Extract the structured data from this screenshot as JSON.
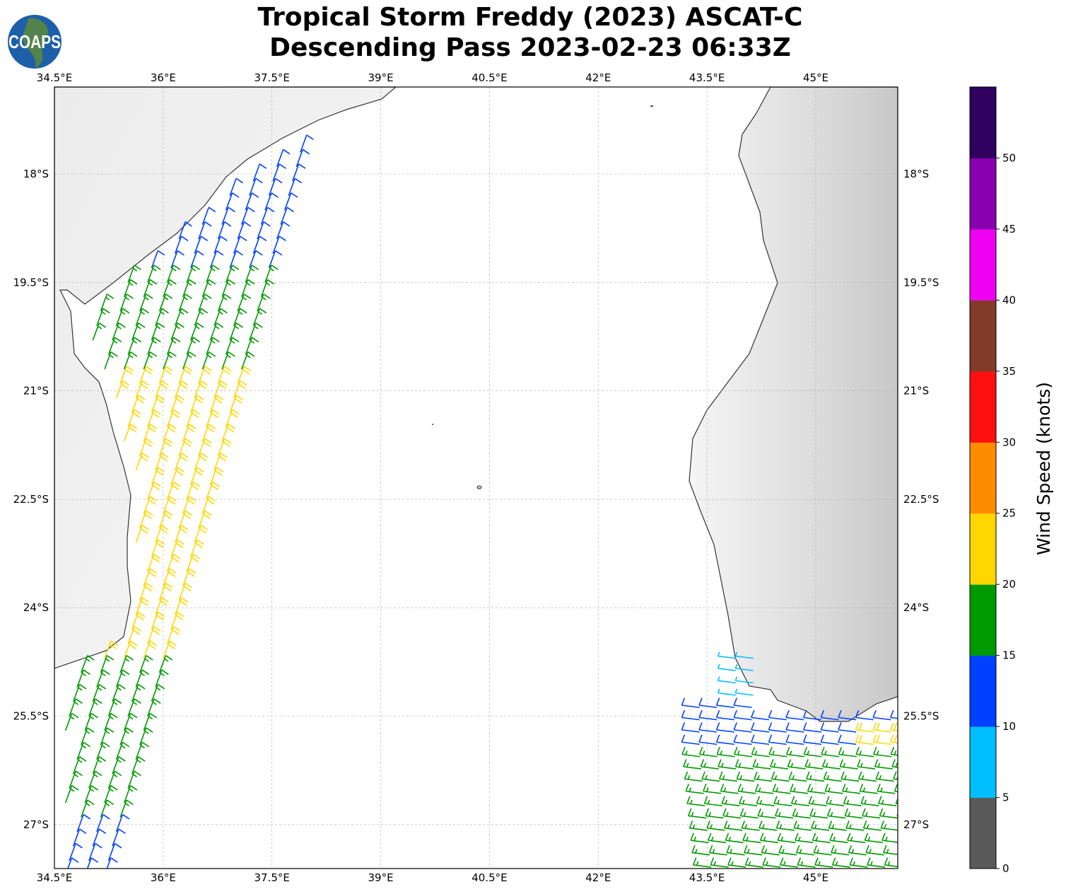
{
  "title": {
    "line1": "Tropical Storm Freddy (2023) ASCAT-C",
    "line2": "Descending Pass 2023-02-23 06:33Z"
  },
  "logo": {
    "text": "COAPS"
  },
  "map": {
    "lon_range": [
      34.5,
      46.13
    ],
    "lat_range": [
      -16.8,
      -27.6
    ],
    "lon_ticks": [
      {
        "v": 34.5,
        "label": "34.5°E"
      },
      {
        "v": 36,
        "label": "36°E"
      },
      {
        "v": 37.5,
        "label": "37.5°E"
      },
      {
        "v": 39,
        "label": "39°E"
      },
      {
        "v": 40.5,
        "label": "40.5°E"
      },
      {
        "v": 42,
        "label": "42°E"
      },
      {
        "v": 43.5,
        "label": "43.5°E"
      },
      {
        "v": 45,
        "label": "45°E"
      }
    ],
    "lat_ticks": [
      {
        "v": -18,
        "label": "18°S"
      },
      {
        "v": -19.5,
        "label": "19.5°S"
      },
      {
        "v": -21,
        "label": "21°S"
      },
      {
        "v": -22.5,
        "label": "22.5°S"
      },
      {
        "v": -24,
        "label": "24°S"
      },
      {
        "v": -25.5,
        "label": "25.5°S"
      },
      {
        "v": -27,
        "label": "27°S"
      }
    ],
    "grid": true,
    "wind_zones_west": [
      {
        "lat_from": -17.3,
        "lat_to": -19.3,
        "speed_kt": 12
      },
      {
        "lat_from": -19.3,
        "lat_to": -20.8,
        "speed_kt": 17
      },
      {
        "lat_from": -20.8,
        "lat_to": -24.8,
        "speed_kt": 22
      },
      {
        "lat_from": -24.8,
        "lat_to": -27.0,
        "speed_kt": 17
      },
      {
        "lat_from": -27.0,
        "lat_to": -27.6,
        "speed_kt": 12
      }
    ],
    "wind_zones_east": [
      {
        "lat_from": -24.7,
        "lat_to": -25.3,
        "speed_kt": 8
      },
      {
        "lat_from": -25.3,
        "lat_to": -25.9,
        "speed_kt": 12
      },
      {
        "lat_from": -25.9,
        "lat_to": -27.6,
        "speed_kt": 17
      }
    ]
  },
  "colorbar": {
    "label": "Wind Speed (knots)",
    "range": [
      0,
      55
    ],
    "ticks": [
      "0",
      "5",
      "10",
      "15",
      "20",
      "25",
      "30",
      "35",
      "40",
      "45",
      "50"
    ],
    "colors": [
      "#595959",
      "#00bfff",
      "#0040ff",
      "#009900",
      "#ffd700",
      "#ff8c00",
      "#ff1010",
      "#803c28",
      "#f000f0",
      "#8800b0",
      "#300060"
    ]
  }
}
